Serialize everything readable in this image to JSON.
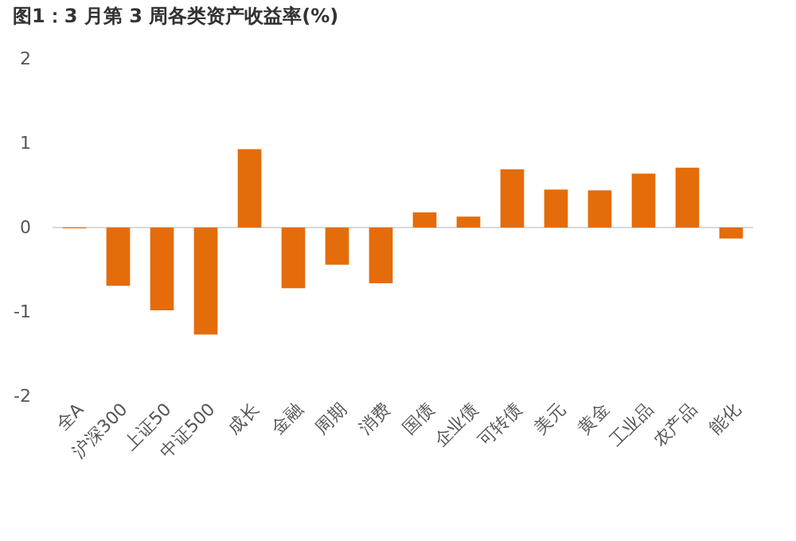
{
  "chart_data": {
    "type": "bar",
    "title": "图1：3 月第 3 周各类资产收益率(%)",
    "categories": [
      "全A",
      "沪深300",
      "上证50",
      "中证500",
      "成长",
      "金融",
      "周期",
      "消费",
      "国债",
      "企业债",
      "可转债",
      "美元",
      "黄金",
      "工业品",
      "农产品",
      "能化"
    ],
    "values": [
      -0.01,
      -0.69,
      -0.98,
      -1.27,
      0.93,
      -0.72,
      -0.44,
      -0.66,
      0.18,
      0.13,
      0.69,
      0.45,
      0.44,
      0.64,
      0.71,
      -0.13
    ],
    "color": "#e46c0a",
    "ylim": [
      -2,
      2
    ],
    "yticks": [
      -2,
      -1,
      0,
      1,
      2
    ],
    "grid": false,
    "ref_lines": [
      {
        "axis": "y",
        "value": 0,
        "color": "#d9d9d9"
      }
    ]
  }
}
